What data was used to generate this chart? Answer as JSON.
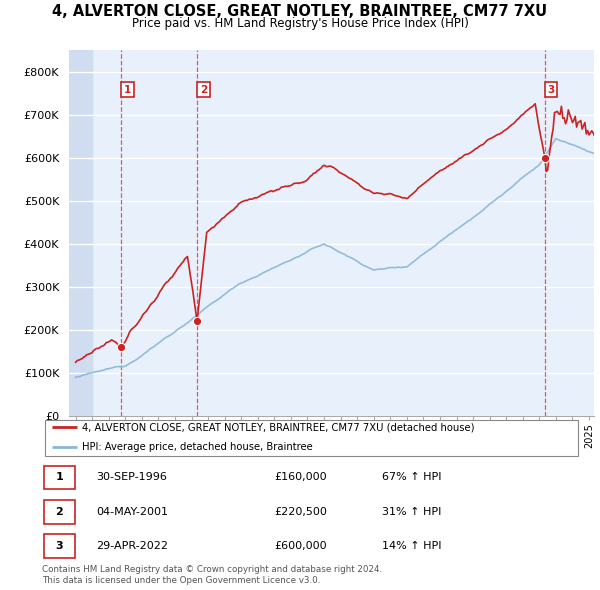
{
  "title": "4, ALVERTON CLOSE, GREAT NOTLEY, BRAINTREE, CM77 7XU",
  "subtitle": "Price paid vs. HM Land Registry's House Price Index (HPI)",
  "ylim": [
    0,
    850000
  ],
  "yticks": [
    0,
    100000,
    200000,
    300000,
    400000,
    500000,
    600000,
    700000,
    800000
  ],
  "ytick_labels": [
    "£0",
    "£100K",
    "£200K",
    "£300K",
    "£400K",
    "£500K",
    "£600K",
    "£700K",
    "£800K"
  ],
  "sale_dates": [
    1996.75,
    2001.34,
    2022.33
  ],
  "sale_prices": [
    160000,
    220500,
    600000
  ],
  "sale_labels": [
    "1",
    "2",
    "3"
  ],
  "vline_dates": [
    1996.75,
    2001.34,
    2022.33
  ],
  "hpi_color": "#88b8d8",
  "price_color": "#cc2222",
  "marker_color": "#cc2222",
  "legend_price_label": "4, ALVERTON CLOSE, GREAT NOTLEY, BRAINTREE, CM77 7XU (detached house)",
  "legend_hpi_label": "HPI: Average price, detached house, Braintree",
  "table_rows": [
    [
      "1",
      "30-SEP-1996",
      "£160,000",
      "67% ↑ HPI"
    ],
    [
      "2",
      "04-MAY-2001",
      "£220,500",
      "31% ↑ HPI"
    ],
    [
      "3",
      "29-APR-2022",
      "£600,000",
      "14% ↑ HPI"
    ]
  ],
  "footnote": "Contains HM Land Registry data © Crown copyright and database right 2024.\nThis data is licensed under the Open Government Licence v3.0.",
  "plot_bg_color": "#e8f0fb",
  "hatch_bg_color": "#d0dcf0",
  "grid_color": "#ffffff",
  "label_box_color": "#cc2222"
}
